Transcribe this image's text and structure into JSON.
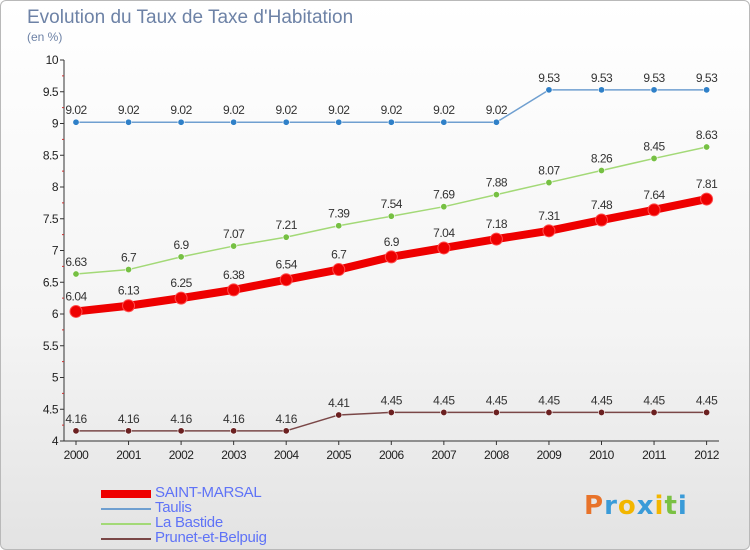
{
  "header": {
    "title": "Evolution du Taux de Taxe d'Habitation",
    "subtitle": "(en %)"
  },
  "logo": {
    "text": "Proxiti",
    "letter_colors": [
      "#e8732a",
      "#3a9bd8",
      "#f2b600",
      "#3a9bd8",
      "#f2b600",
      "#7ac143",
      "#3a9bd8"
    ]
  },
  "chart_data": {
    "type": "line",
    "x": [
      "2000",
      "2001",
      "2002",
      "2003",
      "2004",
      "2005",
      "2006",
      "2007",
      "2008",
      "2009",
      "2010",
      "2011",
      "2012"
    ],
    "ylim": [
      4,
      10
    ],
    "yticks": [
      "4",
      "4.5",
      "5",
      "5.5",
      "6",
      "6.5",
      "7",
      "7.5",
      "8",
      "8.5",
      "9",
      "9.5",
      "10"
    ],
    "grid": false,
    "legend_position": "bottom-left",
    "series": [
      {
        "name": "SAINT-MARSAL",
        "color": "#ee0000",
        "point_color": "#ee0000",
        "emphasis": true,
        "values": [
          6.04,
          6.13,
          6.25,
          6.38,
          6.54,
          6.7,
          6.9,
          7.04,
          7.18,
          7.31,
          7.48,
          7.64,
          7.81
        ],
        "labels": [
          "6.04",
          "6.13",
          "6.25",
          "6.38",
          "6.54",
          "6.7",
          "6.9",
          "7.04",
          "7.18",
          "7.31",
          "7.48",
          "7.64",
          "7.81"
        ]
      },
      {
        "name": "Taulis",
        "color": "#6f9fd0",
        "point_color": "#2f80c8",
        "emphasis": false,
        "values": [
          9.02,
          9.02,
          9.02,
          9.02,
          9.02,
          9.02,
          9.02,
          9.02,
          9.02,
          9.53,
          9.53,
          9.53,
          9.53
        ],
        "labels": [
          "9.02",
          "9.02",
          "9.02",
          "9.02",
          "9.02",
          "9.02",
          "9.02",
          "9.02",
          "9.02",
          "9.53",
          "9.53",
          "9.53",
          "9.53"
        ]
      },
      {
        "name": "La Bastide",
        "color": "#a3d977",
        "point_color": "#76c043",
        "emphasis": false,
        "values": [
          6.63,
          6.7,
          6.9,
          7.07,
          7.21,
          7.39,
          7.54,
          7.69,
          7.88,
          8.07,
          8.26,
          8.45,
          8.63
        ],
        "labels": [
          "6.63",
          "6.7",
          "6.9",
          "7.07",
          "7.21",
          "7.39",
          "7.54",
          "7.69",
          "7.88",
          "8.07",
          "8.26",
          "8.45",
          "8.63"
        ]
      },
      {
        "name": "Prunet-et-Belpuig",
        "color": "#7a4747",
        "point_color": "#6b2020",
        "emphasis": false,
        "values": [
          4.16,
          4.16,
          4.16,
          4.16,
          4.16,
          4.41,
          4.45,
          4.45,
          4.45,
          4.45,
          4.45,
          4.45,
          4.45
        ],
        "labels": [
          "4.16",
          "4.16",
          "4.16",
          "4.16",
          "4.16",
          "4.41",
          "4.45",
          "4.45",
          "4.45",
          "4.45",
          "4.45",
          "4.45",
          "4.45"
        ]
      }
    ]
  }
}
